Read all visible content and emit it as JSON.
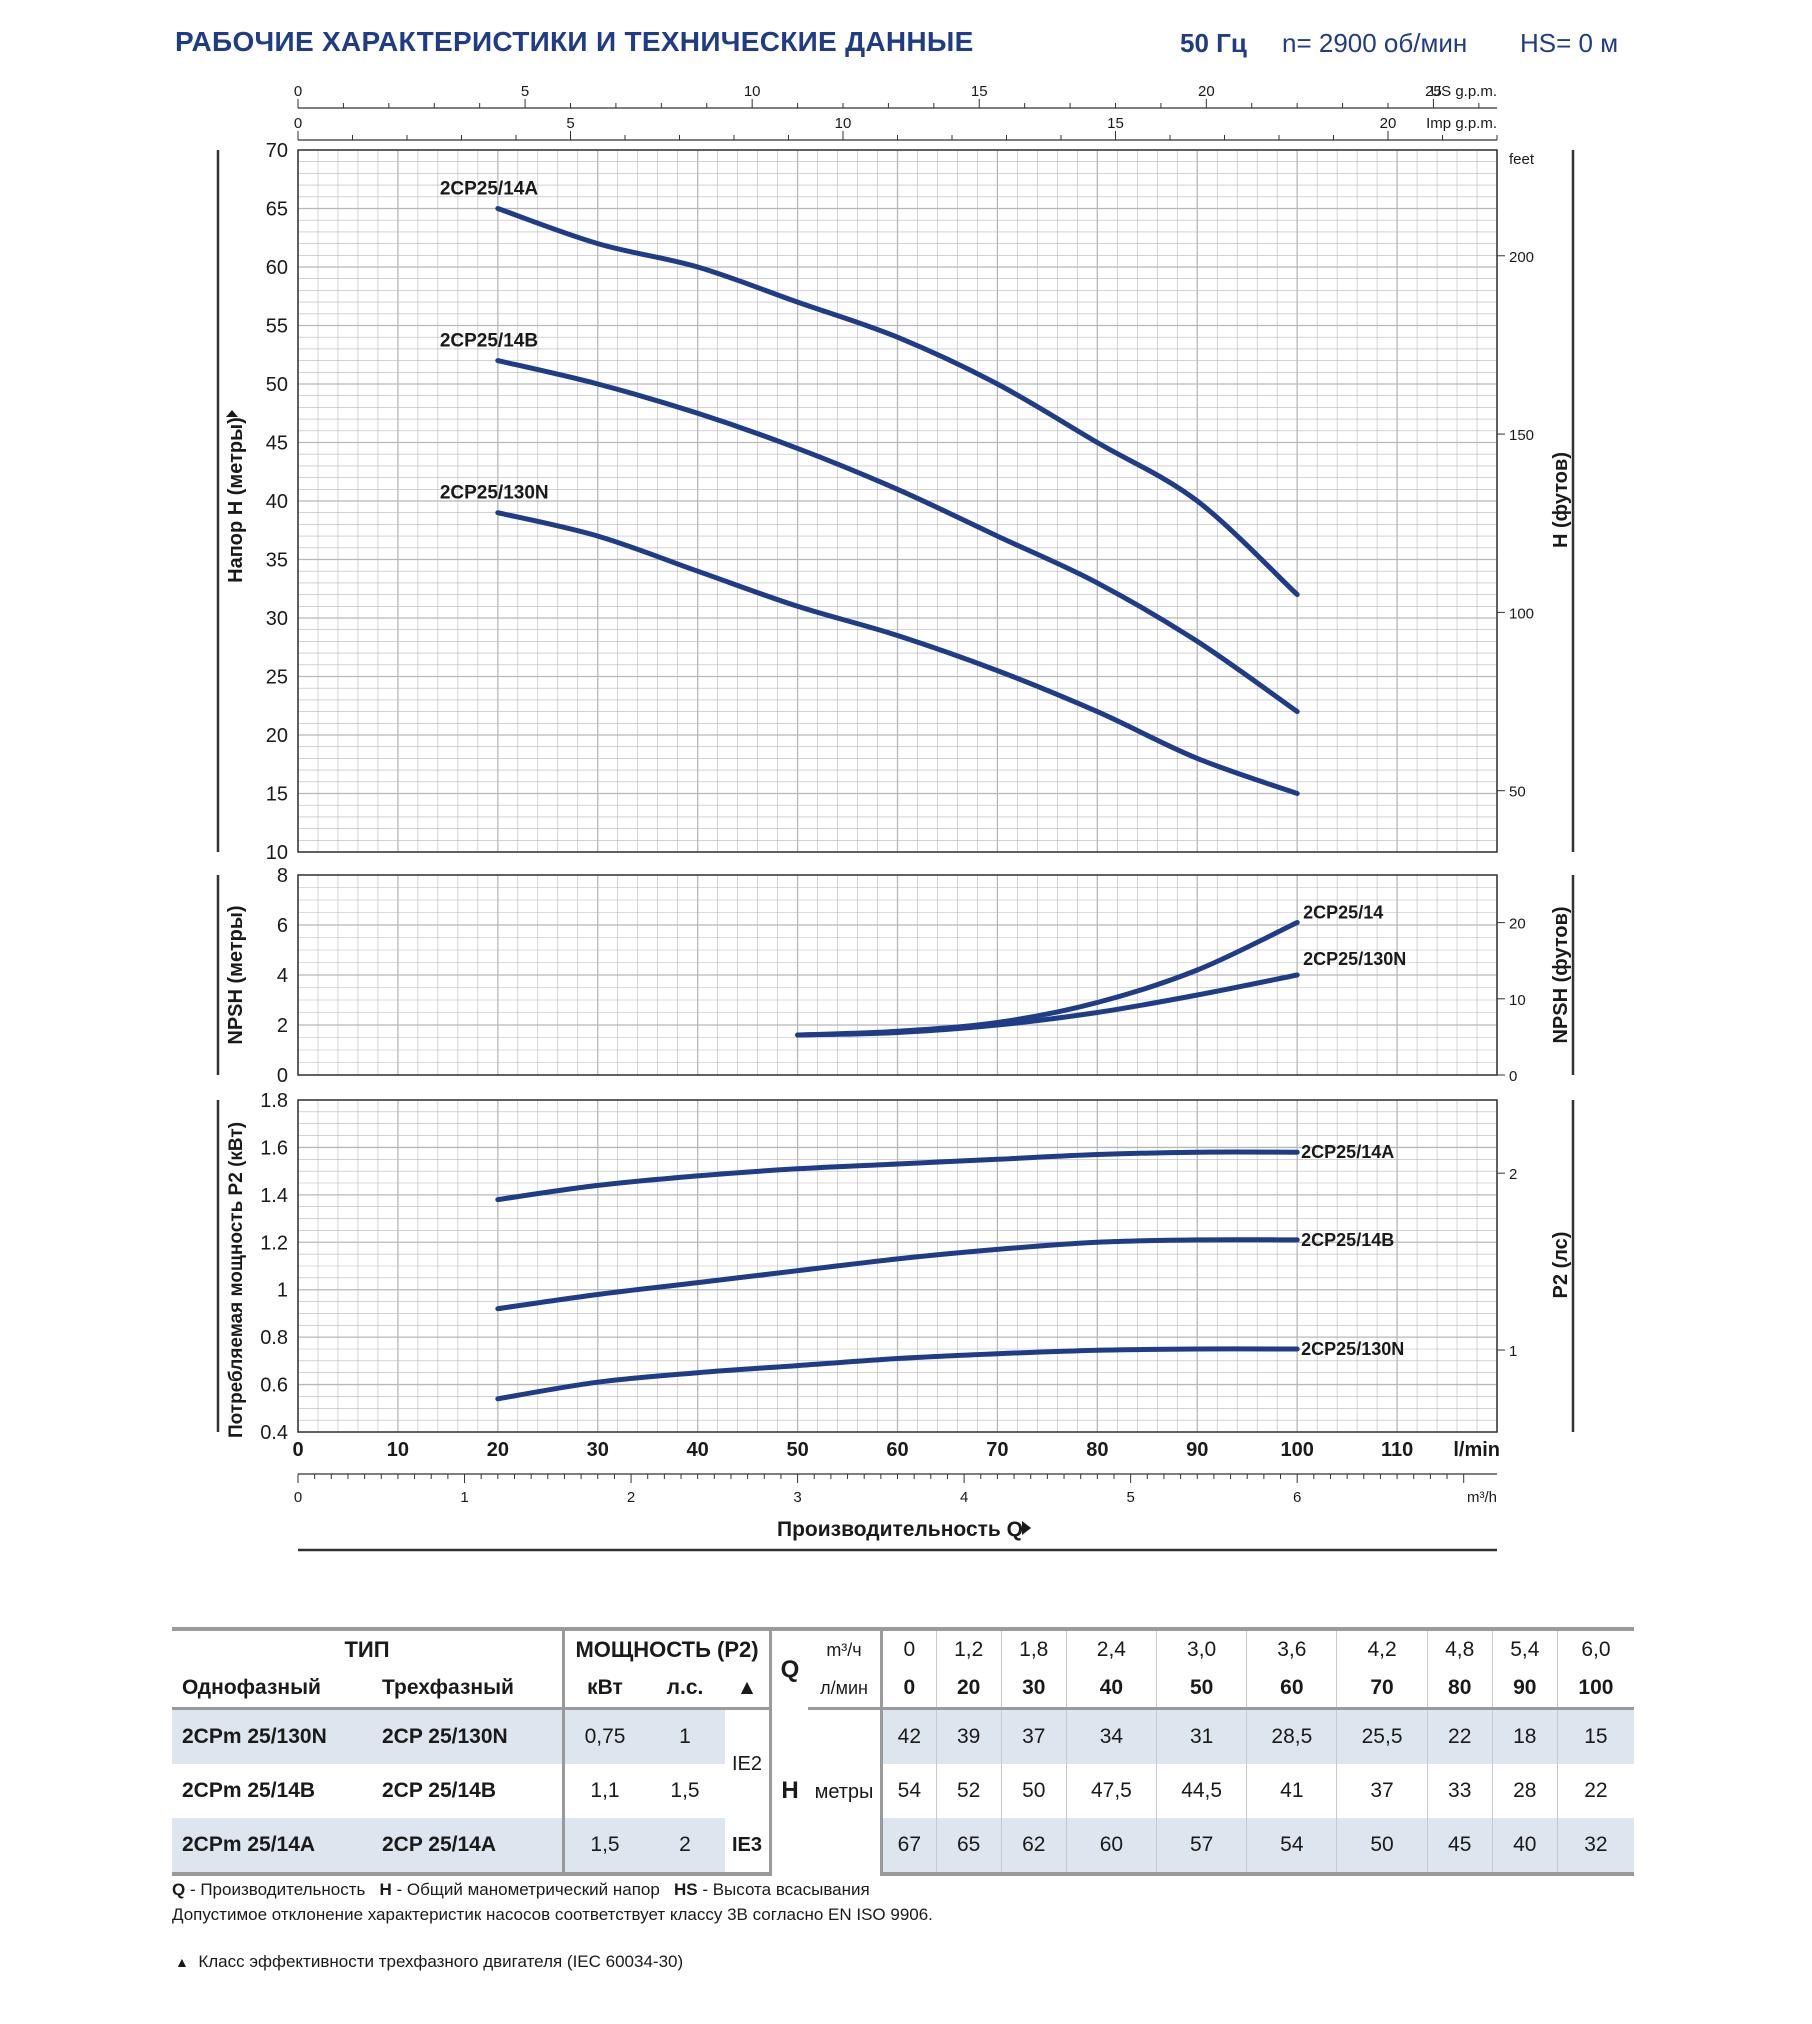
{
  "header": {
    "title": "РАБОЧИЕ ХАРАКТЕРИСТИКИ И ТЕХНИЧЕСКИЕ ДАННЫЕ",
    "freq": "50 Гц",
    "speed": "n= 2900 об/мин",
    "hs": "HS= 0 м"
  },
  "chart_data": [
    {
      "type": "line",
      "title": "",
      "ylabel": "Напор H (метры)",
      "ylabel_right": "H (футов)",
      "right_unit": "feet",
      "ylim": [
        10,
        70
      ],
      "yticks": [
        10,
        15,
        20,
        25,
        30,
        35,
        40,
        45,
        50,
        55,
        60,
        65,
        70
      ],
      "right_ticks": [
        50,
        100,
        150,
        200
      ],
      "top_axes": [
        {
          "label": "US g.p.m.",
          "ticks": [
            0,
            5,
            10,
            15,
            20,
            25
          ],
          "max": 26.4
        },
        {
          "label": "Imp g.p.m.",
          "ticks": [
            0,
            5,
            10,
            15,
            20
          ],
          "max": 22
        }
      ],
      "x": [
        20,
        30,
        40,
        50,
        60,
        70,
        80,
        90,
        100
      ],
      "series": [
        {
          "name": "2CP25/14A",
          "values": [
            65,
            62,
            60,
            57,
            54,
            50,
            45,
            40,
            32
          ]
        },
        {
          "name": "2CP25/14B",
          "values": [
            52,
            50,
            47.5,
            44.5,
            41,
            37,
            33,
            28,
            22
          ]
        },
        {
          "name": "2CP25/130N",
          "values": [
            39,
            37,
            34,
            31,
            28.5,
            25.5,
            22,
            18,
            15
          ]
        }
      ],
      "grid": true
    },
    {
      "type": "line",
      "title": "",
      "ylabel": "NPSH (метры)",
      "ylabel_right": "NPSH (футов)",
      "ylim": [
        0,
        8
      ],
      "yticks": [
        0,
        2,
        4,
        6,
        8
      ],
      "right_ticks": [
        0,
        10,
        20
      ],
      "series": [
        {
          "name": "2CP25/14",
          "x": [
            50,
            60,
            70,
            80,
            90,
            100
          ],
          "values": [
            1.6,
            1.75,
            2.1,
            2.9,
            4.2,
            6.1
          ]
        },
        {
          "name": "2CP25/130N",
          "x": [
            50,
            60,
            70,
            80,
            90,
            100
          ],
          "values": [
            1.6,
            1.7,
            2.0,
            2.5,
            3.2,
            4.0
          ]
        }
      ],
      "grid": true
    },
    {
      "type": "line",
      "title": "",
      "ylabel": "Потребляемая мощность P2 (кВт)",
      "ylabel_right": "P2 (лс)",
      "ylim": [
        0.4,
        1.8
      ],
      "yticks": [
        "0.4",
        "0.6",
        "0.8",
        "1",
        "1.2",
        "1.4",
        "1.6",
        "1.8"
      ],
      "right_ticks": [
        1,
        2
      ],
      "xlabel": "Производительность Q",
      "xunit": "l/min",
      "xunit2": "m³/h",
      "xticks": [
        0,
        10,
        20,
        30,
        40,
        50,
        60,
        70,
        80,
        90,
        100,
        110
      ],
      "xticks2": [
        0,
        1,
        2,
        3,
        4,
        5,
        6
      ],
      "x": [
        20,
        30,
        40,
        50,
        60,
        70,
        80,
        90,
        100
      ],
      "series": [
        {
          "name": "2CP25/14A",
          "values": [
            1.38,
            1.44,
            1.48,
            1.51,
            1.53,
            1.55,
            1.57,
            1.58,
            1.58
          ]
        },
        {
          "name": "2CP25/14B",
          "values": [
            0.92,
            0.98,
            1.03,
            1.08,
            1.13,
            1.17,
            1.2,
            1.21,
            1.21
          ]
        },
        {
          "name": "2CP25/130N",
          "values": [
            0.54,
            0.61,
            0.65,
            0.68,
            0.71,
            0.73,
            0.745,
            0.75,
            0.75
          ]
        }
      ],
      "grid": true
    }
  ],
  "table": {
    "type_header": "ТИП",
    "single_phase": "Однофазный",
    "three_phase": "Трехфазный",
    "power_header": "МОЩНОСТЬ (P2)",
    "kw": "кВт",
    "hp": "л.с.",
    "eff_symbol": "▲",
    "q": "Q",
    "q_unit1": "m³/ч",
    "q_unit2": "л/мин",
    "q_m3h": [
      "0",
      "1,2",
      "1,8",
      "2,4",
      "3,0",
      "3,6",
      "4,2",
      "4,8",
      "5,4",
      "6,0"
    ],
    "q_lmin": [
      "0",
      "20",
      "30",
      "40",
      "50",
      "60",
      "70",
      "80",
      "90",
      "100"
    ],
    "h": "H",
    "h_unit": "метры",
    "rows": [
      {
        "single": "2CPm 25/130N",
        "three": "2CP 25/130N",
        "kw": "0,75",
        "hp": "1",
        "h": [
          "42",
          "39",
          "37",
          "34",
          "31",
          "28,5",
          "25,5",
          "22",
          "18",
          "15"
        ]
      },
      {
        "single": "2CPm 25/14B",
        "three": "2CP 25/14B",
        "kw": "1,1",
        "hp": "1,5",
        "h": [
          "54",
          "52",
          "50",
          "47,5",
          "44,5",
          "41",
          "37",
          "33",
          "28",
          "22"
        ]
      },
      {
        "single": "2CPm 25/14A",
        "three": "2CP 25/14A",
        "kw": "1,5",
        "hp": "2",
        "h": [
          "67",
          "65",
          "62",
          "60",
          "57",
          "54",
          "50",
          "45",
          "40",
          "32"
        ]
      }
    ],
    "ie2": "IE2",
    "ie3": "IE3"
  },
  "footnotes": {
    "q_key": "Q",
    "q_text": " - Производительность",
    "h_key": "H",
    "h_text": " - Общий манометрический напор",
    "hs_key": "HS",
    "hs_text": " - Высота всасывания",
    "tolerance": "Допустимое отклонение характеристик насосов соответствует классу 3B согласно EN ISO 9906.",
    "symbol": "▲",
    "efficiency": "Класс эффективности трехфазного двигателя (IEC 60034-30)"
  },
  "colors": {
    "curve": "#1f3c88",
    "title": "#1f3c88",
    "grid": "#b8b8b8",
    "shade": "#dde6ee"
  }
}
